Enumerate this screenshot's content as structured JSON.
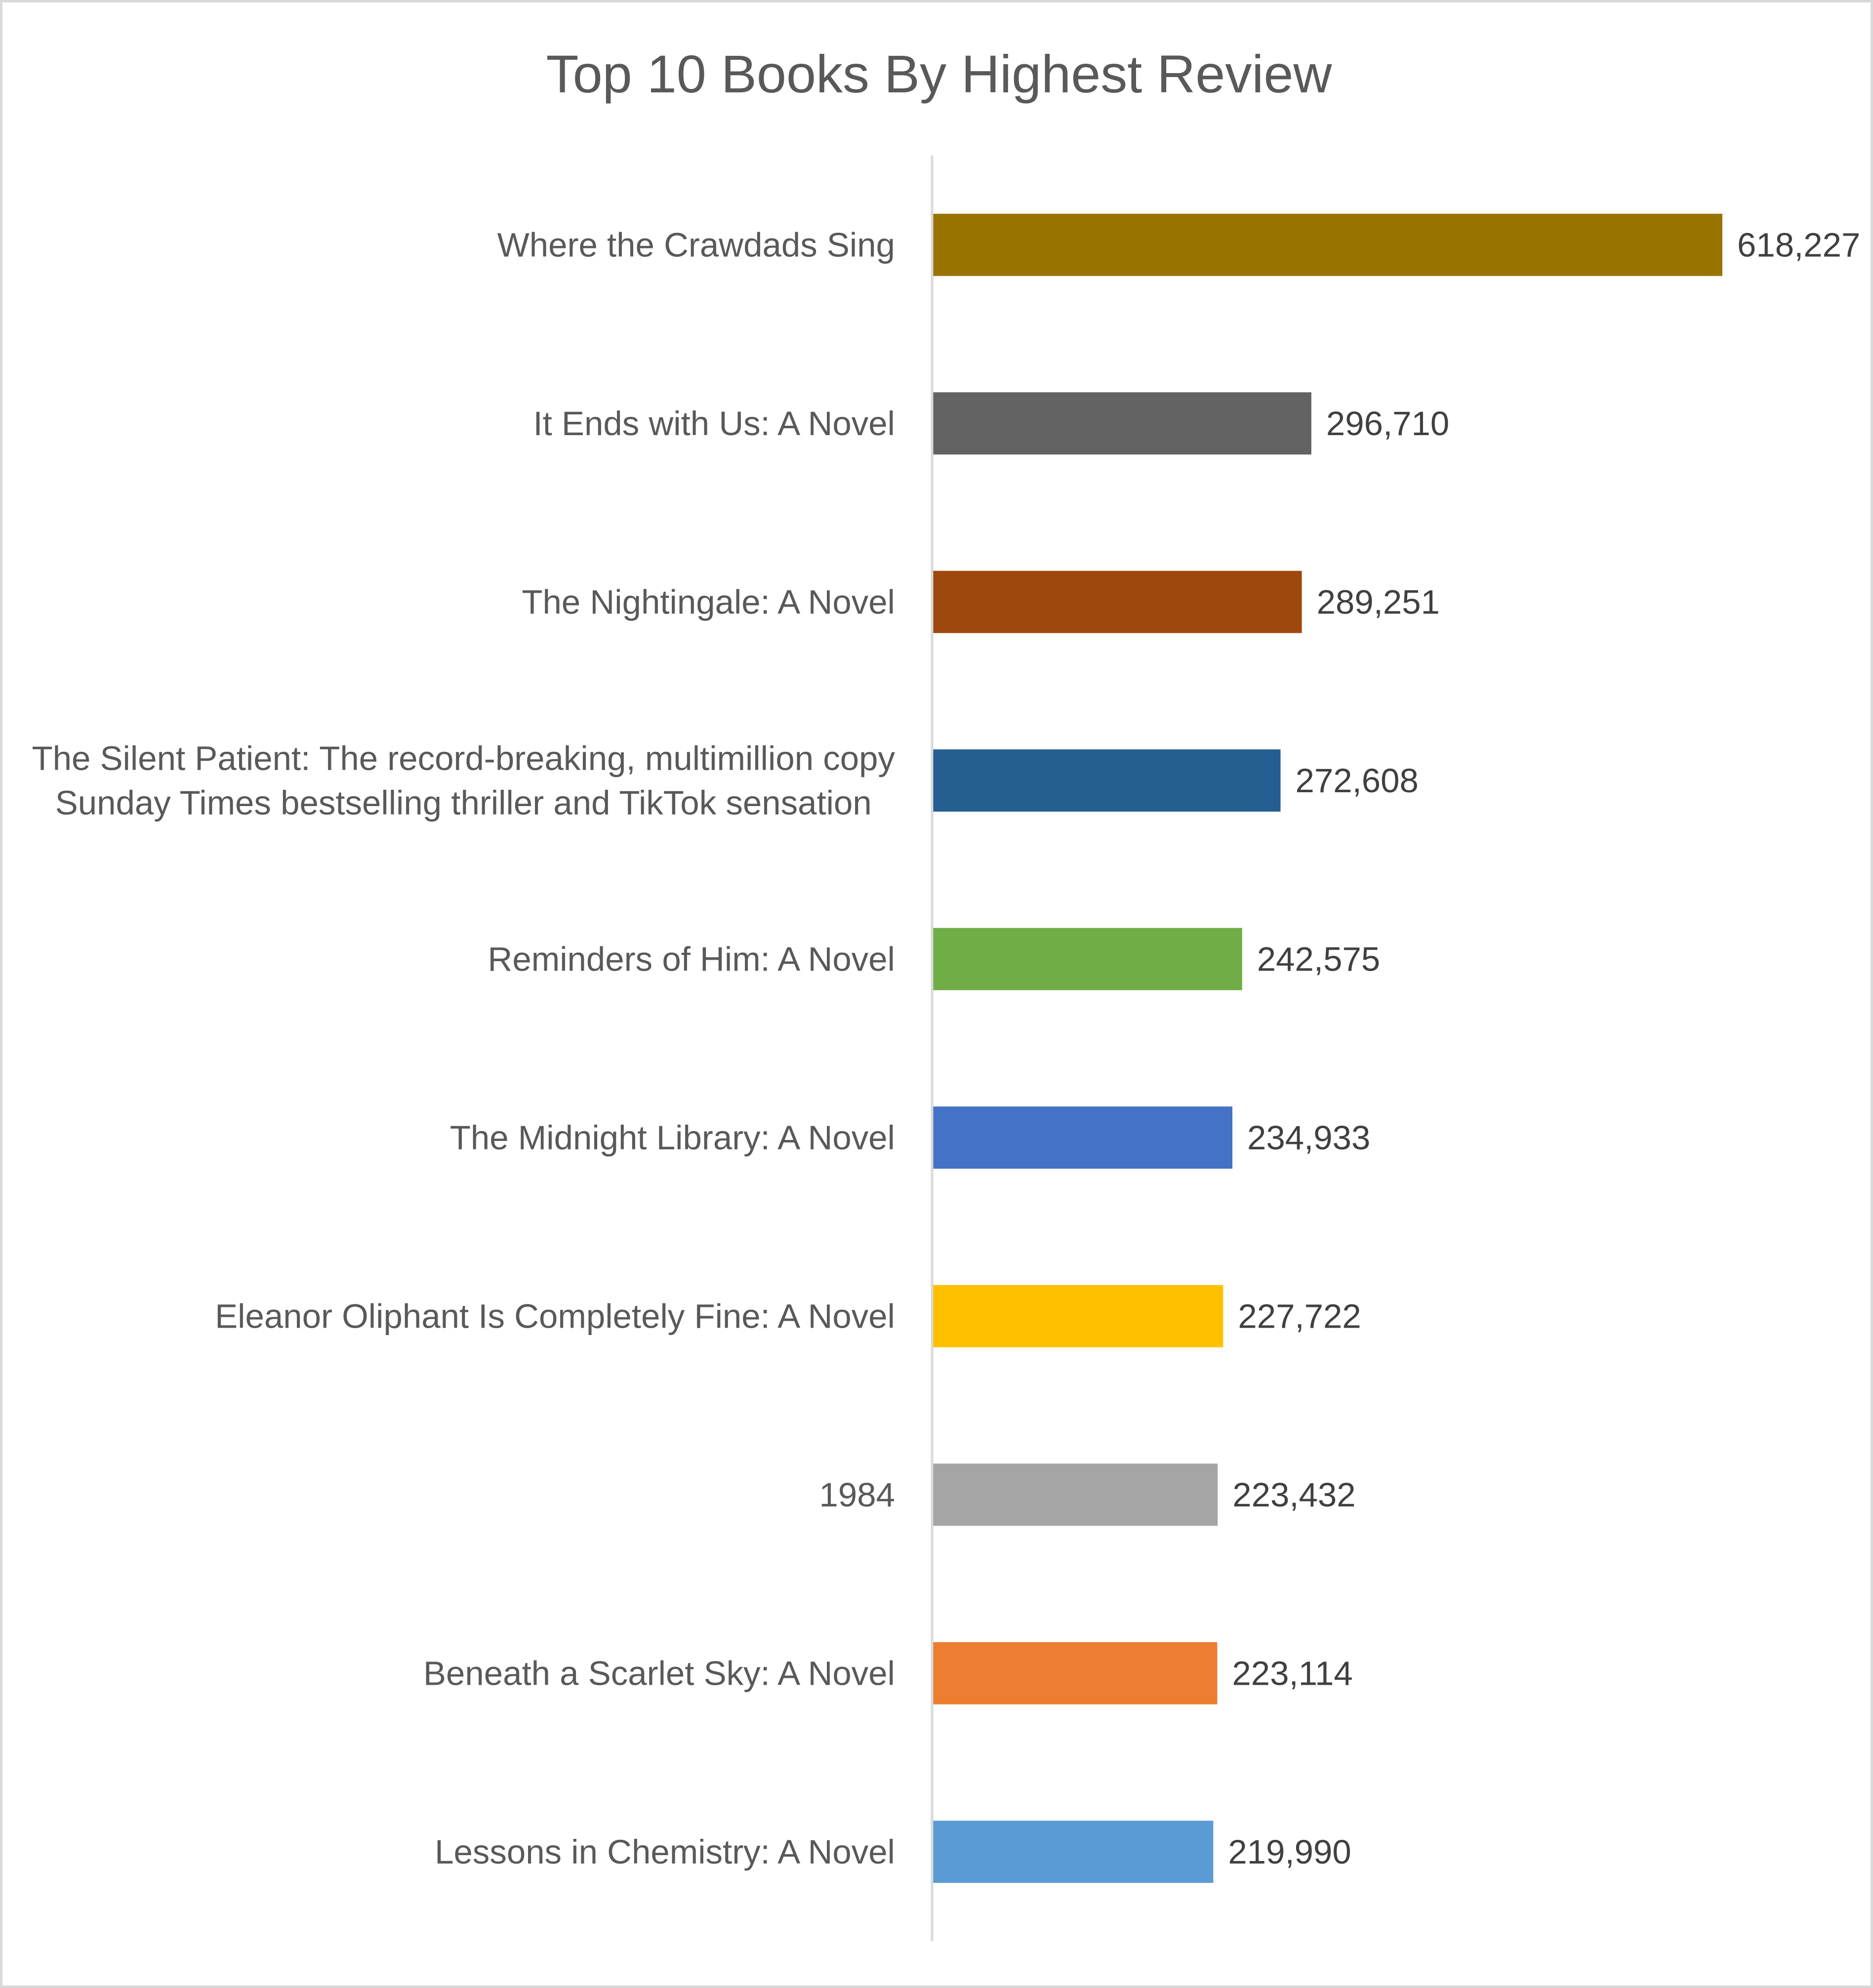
{
  "chart_data": {
    "type": "bar",
    "orientation": "horizontal",
    "title": "Top 10 Books By Highest Review",
    "categories": [
      "Where the Crawdads Sing",
      "It Ends with Us: A Novel",
      "The Nightingale: A Novel",
      "The Silent Patient: The record-breaking, multimillion copy Sunday Times bestselling thriller and TikTok sensation",
      "Reminders of Him: A Novel",
      "The Midnight Library: A Novel",
      "Eleanor Oliphant Is Completely Fine: A Novel",
      "1984",
      "Beneath a Scarlet Sky: A Novel",
      "Lessons in Chemistry: A Novel"
    ],
    "category_lines": [
      [
        "Where the Crawdads Sing"
      ],
      [
        "It Ends with Us: A Novel"
      ],
      [
        "The Nightingale: A Novel"
      ],
      [
        "The Silent Patient: The record-breaking, multimillion copy",
        "Sunday Times bestselling thriller and TikTok sensation"
      ],
      [
        "Reminders of Him: A Novel"
      ],
      [
        "The Midnight Library: A Novel"
      ],
      [
        "Eleanor Oliphant Is Completely Fine: A Novel"
      ],
      [
        "1984"
      ],
      [
        "Beneath a Scarlet Sky: A Novel"
      ],
      [
        "Lessons in Chemistry: A Novel"
      ]
    ],
    "values": [
      618227,
      296710,
      289251,
      272608,
      242575,
      234933,
      227722,
      223432,
      223114,
      219990
    ],
    "value_labels": [
      "618,227",
      "296,710",
      "289,251",
      "272,608",
      "242,575",
      "234,933",
      "227,722",
      "223,432",
      "223,114",
      "219,990"
    ],
    "colors": [
      "#997300",
      "#636363",
      "#9e480e",
      "#255e91",
      "#70ad47",
      "#4472c4",
      "#ffc000",
      "#a5a5a5",
      "#ed7d31",
      "#5b9bd5"
    ],
    "xlim": [
      0,
      618227
    ],
    "xlabel": "",
    "ylabel": "",
    "grid": false,
    "legend": "none",
    "axis_color": "#d9d9d9"
  }
}
